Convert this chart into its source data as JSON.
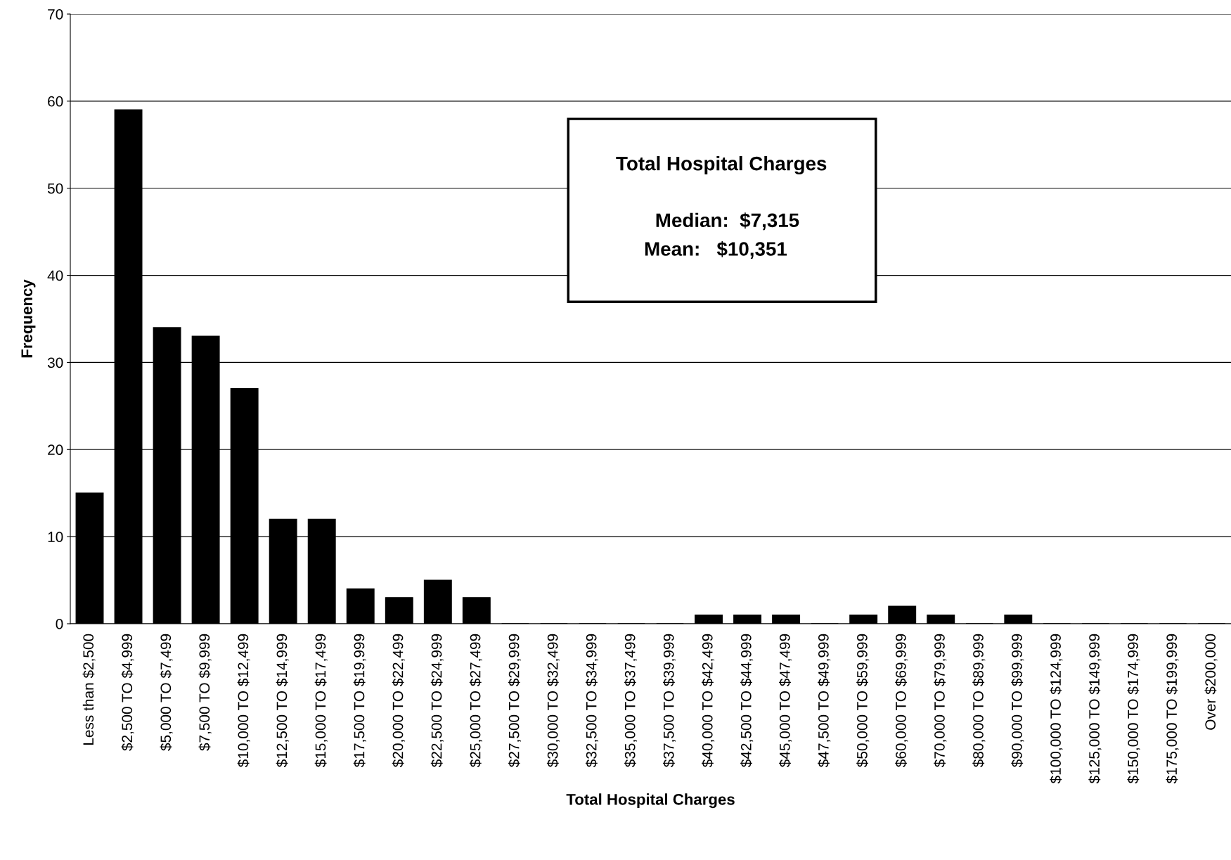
{
  "chart_data": {
    "type": "bar",
    "xlabel": "Total Hospital Charges",
    "ylabel": "Frequency",
    "categories": [
      "Less than $2,500",
      "$2,500 TO $4,999",
      "$5,000 TO $7,499",
      "$7,500 TO $9,999",
      "$10,000 TO $12,499",
      "$12,500 TO $14,999",
      "$15,000 TO $17,499",
      "$17,500 TO $19,999",
      "$20,000 TO $22,499",
      "$22,500 TO $24,999",
      "$25,000 TO $27,499",
      "$27,500 TO $29,999",
      "$30,000 TO $32,499",
      "$32,500 TO $34,999",
      "$35,000 TO $37,499",
      "$37,500 TO $39,999",
      "$40,000 TO $42,499",
      "$42,500 TO $44,999",
      "$45,000 TO $47,499",
      "$47,500 TO $49,999",
      "$50,000 TO $59,999",
      "$60,000 TO $69,999",
      "$70,000 TO $79,999",
      "$80,000 TO $89,999",
      "$90,000 TO $99,999",
      "$100,000 TO $124,999",
      "$125,000 TO $149,999",
      "$150,000 TO $174,999",
      "$175,000 TO $199,999",
      "Over $200,000"
    ],
    "values": [
      15,
      59,
      34,
      33,
      27,
      12,
      12,
      4,
      3,
      5,
      3,
      0,
      0,
      0,
      0,
      0,
      1,
      1,
      1,
      0,
      1,
      2,
      1,
      0,
      1,
      0,
      0,
      0,
      0,
      0
    ],
    "color": "#000000",
    "ylim": [
      0,
      70
    ],
    "yticks": [
      0,
      10,
      20,
      30,
      40,
      50,
      60,
      70
    ],
    "grid": "y",
    "annotations": [
      "Total Hospital Charges",
      "Median:  $7,315",
      "Mean:   $10,351"
    ]
  }
}
